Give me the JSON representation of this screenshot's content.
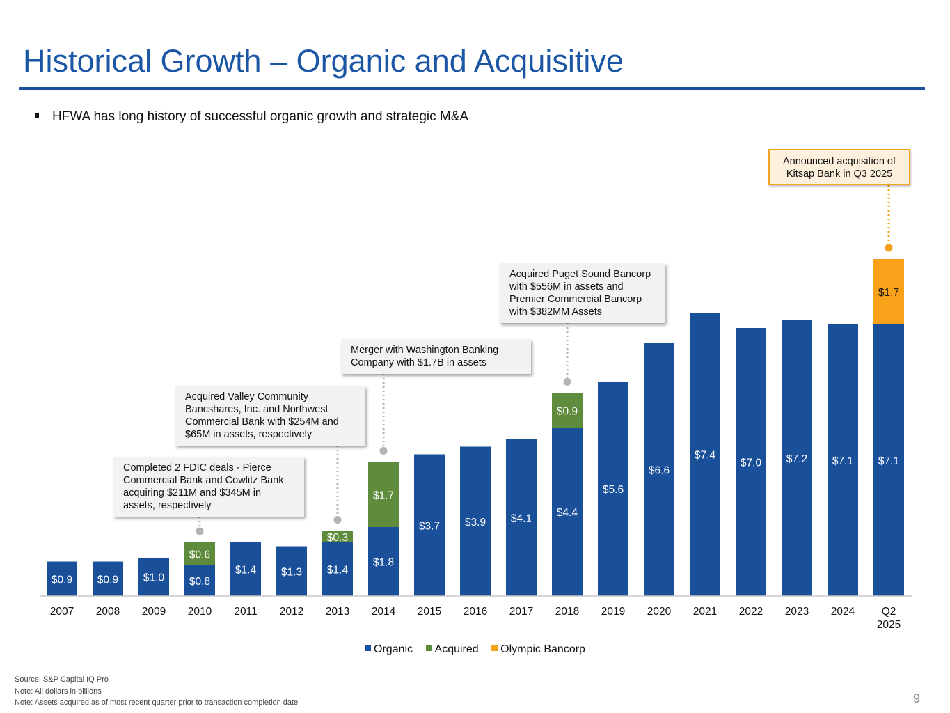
{
  "title": "Historical Growth – Organic and Acquisitive",
  "bullet": "HFWA has long history of successful organic growth and strategic M&A",
  "colors": {
    "organic": "#1a4f9a",
    "acquired": "#5f8b3c",
    "olympic": "#f8a21a",
    "title": "#1a56a5",
    "connector_gray": "#b3b3b3",
    "connector_orange": "#f2a21c"
  },
  "chart_data": {
    "type": "bar",
    "stacked": true,
    "categories": [
      "2007",
      "2008",
      "2009",
      "2010",
      "2011",
      "2012",
      "2013",
      "2014",
      "2015",
      "2016",
      "2017",
      "2018",
      "2019",
      "2020",
      "2021",
      "2022",
      "2023",
      "2024",
      "Q2 2025"
    ],
    "series": [
      {
        "name": "Organic",
        "color": "#1a4f9a",
        "values": [
          0.9,
          0.9,
          1.0,
          0.8,
          1.4,
          1.3,
          1.4,
          1.8,
          3.7,
          3.9,
          4.1,
          4.4,
          5.6,
          6.6,
          7.4,
          7.0,
          7.2,
          7.1,
          7.1
        ]
      },
      {
        "name": "Acquired",
        "color": "#5f8b3c",
        "values": [
          null,
          null,
          null,
          0.6,
          null,
          null,
          0.3,
          1.7,
          null,
          null,
          null,
          0.9,
          null,
          null,
          null,
          null,
          null,
          null,
          null
        ]
      },
      {
        "name": "Olympic Bancorp",
        "color": "#f8a21a",
        "values": [
          null,
          null,
          null,
          null,
          null,
          null,
          null,
          null,
          null,
          null,
          null,
          null,
          null,
          null,
          null,
          null,
          null,
          null,
          1.7
        ]
      }
    ],
    "data_labels": {
      "Organic": [
        "$0.9",
        "$0.9",
        "$1.0",
        "$0.8",
        "$1.4",
        "$1.3",
        "$1.4",
        "$1.8",
        "$3.7",
        "$3.9",
        "$4.1",
        "$4.4",
        "$5.6",
        "$6.6",
        "$7.4",
        "$7.0",
        "$7.2",
        "$7.1",
        "$7.1"
      ],
      "Acquired": [
        "",
        "",
        "",
        "$0.6",
        "",
        "",
        "$0.3",
        "$1.7",
        "",
        "",
        "",
        "$0.9",
        "",
        "",
        "",
        "",
        "",
        "",
        ""
      ],
      "Olympic Bancorp": [
        "",
        "",
        "",
        "",
        "",
        "",
        "",
        "",
        "",
        "",
        "",
        "",
        "",
        "",
        "",
        "",
        "",
        "",
        "$1.7"
      ]
    },
    "ylim": [
      0,
      9.2
    ],
    "legend_position": "bottom-center",
    "grid": false,
    "annotations": [
      {
        "category": "2010",
        "text": "Completed 2 FDIC deals - Pierce Commercial Bank and Cowlitz Bank acquiring $211M and $345M in assets, respectively"
      },
      {
        "category": "2013",
        "text": "Acquired Valley Community Bancshares, Inc. and Northwest Commercial Bank with $254M and $65M in assets, respectively"
      },
      {
        "category": "2014",
        "text": "Merger with Washington Banking Company with $1.7B in assets"
      },
      {
        "category": "2018",
        "text": "Acquired Puget Sound Bancorp with $556M in assets and Premier Commercial Bancorp with $382MM Assets"
      },
      {
        "category": "Q2 2025",
        "text": "Announced acquisition of Kitsap Bank in Q3 2025"
      }
    ]
  },
  "legend": [
    {
      "name": "Organic",
      "color": "#1a4f9a"
    },
    {
      "name": "Acquired",
      "color": "#5f8b3c"
    },
    {
      "name": "Olympic Bancorp",
      "color": "#f8a21a"
    }
  ],
  "footnotes": [
    "Source: S&P Capital IQ Pro",
    "Note: All dollars in billions",
    "Note: Assets acquired as of most recent quarter prior to transaction completion date"
  ],
  "page_number": "9"
}
